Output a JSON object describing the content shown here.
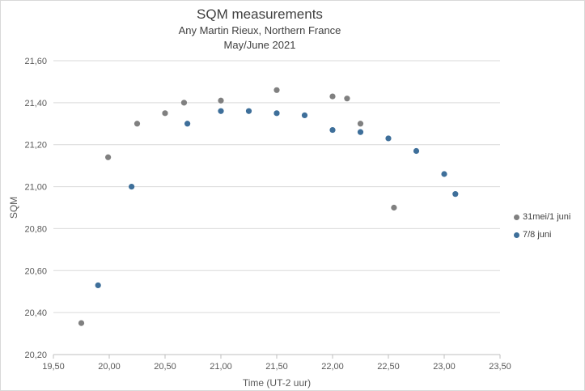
{
  "chart_data": {
    "type": "scatter",
    "title": "SQM measurements",
    "subtitle_lines": [
      "Any Martin Rieux, Northern France",
      "May/June 2021"
    ],
    "xlabel": "Time (UT-2 uur)",
    "ylabel": "SQM",
    "xlim": [
      19.5,
      23.5
    ],
    "ylim": [
      20.2,
      21.6
    ],
    "x_ticks": [
      "19,50",
      "20,00",
      "20,50",
      "21,00",
      "21,50",
      "22,00",
      "22,50",
      "23,00",
      "23,50"
    ],
    "y_ticks": [
      "20,20",
      "20,40",
      "20,60",
      "20,80",
      "21,00",
      "21,20",
      "21,40",
      "21,60"
    ],
    "grid": "horizontal",
    "legend_position": "right",
    "series": [
      {
        "name": "31mei/1 juni",
        "color": "#808080",
        "points": [
          [
            19.75,
            20.35
          ],
          [
            19.99,
            21.14
          ],
          [
            20.25,
            21.3
          ],
          [
            20.5,
            21.35
          ],
          [
            20.67,
            21.4
          ],
          [
            21.0,
            21.41
          ],
          [
            21.5,
            21.46
          ],
          [
            22.0,
            21.43
          ],
          [
            22.13,
            21.42
          ],
          [
            22.25,
            21.3
          ],
          [
            22.55,
            20.9
          ]
        ]
      },
      {
        "name": "7/8 juni",
        "color": "#3e6f9a",
        "points": [
          [
            19.9,
            20.53
          ],
          [
            20.2,
            21.0
          ],
          [
            20.7,
            21.3
          ],
          [
            21.0,
            21.36
          ],
          [
            21.25,
            21.36
          ],
          [
            21.5,
            21.35
          ],
          [
            21.75,
            21.34
          ],
          [
            22.0,
            21.27
          ],
          [
            22.25,
            21.26
          ],
          [
            22.5,
            21.23
          ],
          [
            22.75,
            21.17
          ],
          [
            23.0,
            21.06
          ],
          [
            23.1,
            20.965
          ]
        ]
      }
    ]
  }
}
